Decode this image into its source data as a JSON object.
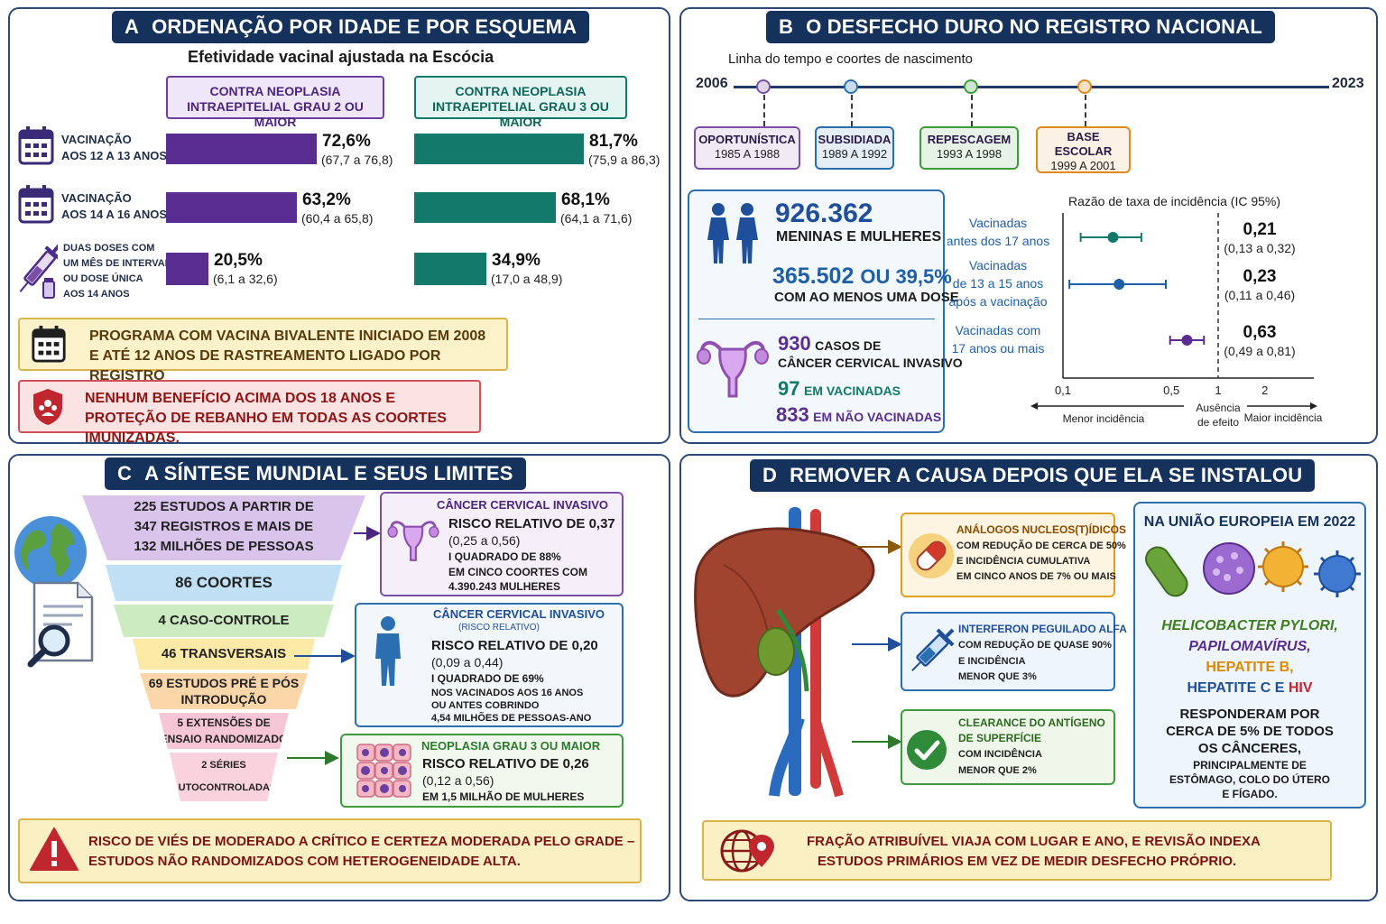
{
  "panelA": {
    "title_letter": "A",
    "title": "ORDENAÇÃO POR IDADE E POR ESQUEMA",
    "subtitle": "Efetividade vacinal ajustada na Escócia",
    "col1_header": [
      "CONTRA NEOPLASIA",
      "INTRAEPITELIAL GRAU 2 OU MAIOR"
    ],
    "col2_header": [
      "CONTRA NEOPLASIA",
      "INTRAEPITELIAL GRAU 3 OU MAIOR"
    ],
    "rows": [
      {
        "label": [
          "VACINAÇÃO",
          "AOS 12 A 13 ANOS"
        ],
        "icon": "calendar-icon",
        "cin2": {
          "value": 72.6,
          "text": "72,6%",
          "ci": "(67,7 a 76,8)"
        },
        "cin3": {
          "value": 81.7,
          "text": "81,7%",
          "ci": "(75,9 a 86,3)"
        }
      },
      {
        "label": [
          "VACINAÇÃO",
          "AOS 14 A 16 ANOS"
        ],
        "icon": "calendar-icon",
        "cin2": {
          "value": 63.2,
          "text": "63,2%",
          "ci": "(60,4 a 65,8)"
        },
        "cin3": {
          "value": 68.1,
          "text": "68,1%",
          "ci": "(64,1 a 71,6)"
        }
      },
      {
        "label": [
          "DUAS DOSES COM",
          "UM MÊS DE INTERVALO",
          "OU DOSE ÚNICA",
          "AOS 14 ANOS"
        ],
        "icon": "syringe-icon",
        "cin2": {
          "value": 20.5,
          "text": "20,5%",
          "ci": "(6,1 a 32,6)"
        },
        "cin3": {
          "value": 34.9,
          "text": "34,9%",
          "ci": "(17,0 a 48,9)"
        }
      }
    ],
    "note1": [
      "PROGRAMA COM VACINA BIVALENTE INICIADO EM 2008",
      "E ATÉ 12 ANOS DE RASTREAMENTO LIGADO POR REGISTRO"
    ],
    "note2": [
      "NENHUM BENEFÍCIO ACIMA DOS 18 ANOS E",
      "PROTEÇÃO DE REBANHO EM TODAS AS COORTES IMUNIZADAS."
    ]
  },
  "panelB": {
    "title_letter": "B",
    "title": "O DESFECHO DURO NO REGISTRO NACIONAL",
    "timeline_title": "Linha do tempo e coortes de nascimento",
    "year_start": "2006",
    "year_end": "2023",
    "cohorts": [
      {
        "name": "OPORTUNÍSTICA",
        "years": "1985 A 1988",
        "color": "#7b4fa8"
      },
      {
        "name": "SUBSIDIADA",
        "years": "1989 A 1992",
        "color": "#2c6fb0"
      },
      {
        "name": "REPESCAGEM",
        "years": "1993 A 1998",
        "color": "#3f9a3f"
      },
      {
        "name": "BASE ESCOLAR",
        "name_lines": [
          "BASE",
          "ESCOLAR"
        ],
        "years": "1999 A 2001",
        "color": "#e08a1e"
      }
    ],
    "population": "926.362",
    "population_label": "MENINAS E MULHERES",
    "vaccinated_count": "365.502",
    "vaccinated_pct": "OU 39,5%",
    "vaccinated_label": "COM AO MENOS UMA DOSE",
    "cases": "930",
    "cases_label1": "CASOS DE",
    "cases_label2": "CÂNCER CERVICAL INVASIVO",
    "cases_vacc": "97",
    "cases_vacc_label": "EM VACINADAS",
    "cases_unvacc": "833",
    "cases_unvacc_label": "EM NÃO VACINADAS",
    "forest": {
      "title": "Razão de taxa de incidência (IC 95%)",
      "ticks": [
        "0,1",
        "0,5",
        "1",
        "2"
      ],
      "null_label": [
        "Ausência",
        "de efeito"
      ],
      "left_label": "Menor incidência",
      "right_label": "Maior incidência",
      "rows": [
        {
          "label": [
            "Vacinadas",
            "antes dos 17 anos"
          ],
          "est": 0.21,
          "lo": 0.13,
          "hi": 0.32,
          "text": "0,21",
          "ci": "(0,13 a 0,32)",
          "color": "#137a6b"
        },
        {
          "label": [
            "Vacinadas",
            "de 13 a 15 anos",
            "após a vacinação"
          ],
          "est": 0.23,
          "lo": 0.11,
          "hi": 0.46,
          "text": "0,23",
          "ci": "(0,11 a 0,46)",
          "color": "#1f5fa8"
        },
        {
          "label": [
            "Vacinadas com",
            "17 anos ou mais"
          ],
          "est": 0.63,
          "lo": 0.49,
          "hi": 0.81,
          "text": "0,63",
          "ci": "(0,49 a 0,81)",
          "color": "#5a2d91"
        }
      ]
    }
  },
  "panelC": {
    "title_letter": "C",
    "title": "A SÍNTESE MUNDIAL E SEUS LIMITES",
    "funnel": [
      {
        "lines": [
          "225 ESTUDOS A PARTIR DE",
          "347 REGISTROS E MAIS DE",
          "132 MILHÕES DE PESSOAS"
        ],
        "color": "#d9c5ec"
      },
      {
        "lines": [
          "86 COORTES"
        ],
        "color": "#bfe0f5"
      },
      {
        "lines": [
          "4 CASO-CONTROLE"
        ],
        "color": "#cdebc0"
      },
      {
        "lines": [
          "46 TRANSVERSAIS"
        ],
        "color": "#fbe9a5"
      },
      {
        "lines": [
          "69 ESTUDOS PRÉ E PÓS",
          "INTRODUÇÃO"
        ],
        "color": "#fbd6a8"
      },
      {
        "lines": [
          "5 EXTENSÕES DE",
          "ENSAIO RANDOMIZADO"
        ],
        "color": "#f7c6d6"
      },
      {
        "lines": [
          "2 SÉRIES",
          "AUTOCONTROLADAS"
        ],
        "color": "#f9d2de"
      }
    ],
    "results": [
      {
        "title": "CÂNCER CERVICAL INVASIVO",
        "lines": [
          "RISCO RELATIVO DE 0,37",
          "(0,25 a 0,56)",
          "I QUADRADO DE 88%",
          "EM CINCO COORTES COM",
          "4.390.243 MULHERES"
        ],
        "color": "#7b4fa8"
      },
      {
        "title": "CÂNCER CERVICAL INVASIVO",
        "subtitle": "(RISCO RELATIVO)",
        "lines": [
          "RISCO RELATIVO DE 0,20",
          "(0,09 a 0,44)",
          "I QUADRADO DE 69%",
          "NOS VACINADOS AOS 16 ANOS",
          "OU ANTES COBRINDO",
          "4,54 MILHÕES DE PESSOAS-ANO"
        ],
        "color": "#2c6fb0"
      },
      {
        "title": "NEOPLASIA GRAU 3 OU MAIOR",
        "lines": [
          "RISCO RELATIVO DE 0,26",
          "(0,12 a 0,56)",
          "EM 1,5 MILHÃO DE MULHERES"
        ],
        "color": "#3f9a3f"
      }
    ],
    "warning": [
      "RISCO DE VIÉS DE MODERADO A CRÍTICO E CERTEZA MODERADA PELO GRADE –",
      "ESTUDOS NÃO RANDOMIZADOS COM HETEROGENEIDADE ALTA."
    ]
  },
  "panelD": {
    "title_letter": "D",
    "title": "REMOVER A CAUSA DEPOIS QUE ELA SE INSTALOU",
    "treatments": [
      {
        "title": "ANÁLOGOS NUCLEOS(T)ÍDICOS",
        "lines": [
          "COM REDUÇÃO DE CERCA DE 50%",
          "E INCIDÊNCIA CUMULATIVA",
          "EM CINCO ANOS DE 7% OU MAIS"
        ],
        "color": "#e0a11e",
        "icon": "pill-icon"
      },
      {
        "title": "INTERFERON PEGUILADO ALFA",
        "lines": [
          "COM REDUÇÃO DE QUASE 90%",
          "E INCIDÊNCIA",
          "MENOR QUE 3%"
        ],
        "color": "#2c6fb0",
        "icon": "syringe-icon"
      },
      {
        "title": "CLEARANCE DO ANTÍGENO",
        "title2": "DE SUPERFÍCIE",
        "lines": [
          "COM INCIDÊNCIA",
          "MENOR QUE 2%"
        ],
        "color": "#3f9a3f",
        "icon": "check-icon"
      }
    ],
    "eu_title": "NA UNIÃO EUROPEIA EM 2022",
    "agents": [
      {
        "text": "HELICOBACTER PYLORI,",
        "color": "#3f7d1f"
      },
      {
        "text": "PAPILOMAVÍRUS,",
        "color": "#5a2d91"
      },
      {
        "text": "HEPATITE B,",
        "color": "#d98a00"
      },
      {
        "text": "HEPATITE C",
        "color": "#1f4f9a"
      },
      {
        "text": "E",
        "color": "#1f4f9a"
      },
      {
        "text": "HIV",
        "color": "#c0262e"
      }
    ],
    "eu_body": [
      "RESPONDERAM POR",
      "CERCA DE 5% DE TODOS",
      "OS CÂNCERES,"
    ],
    "eu_small": [
      "PRINCIPALMENTE DE",
      "ESTÔMAGO, COLO DO ÚTERO",
      "E FÍGADO."
    ],
    "footer": [
      "FRAÇÃO ATRIBUÍVEL VIAJA COM LUGAR E ANO, E REVISÃO INDEXA",
      "ESTUDOS PRIMÁRIOS EM VEZ DE MEDIR DESFECHO PRÓPRIO."
    ]
  }
}
